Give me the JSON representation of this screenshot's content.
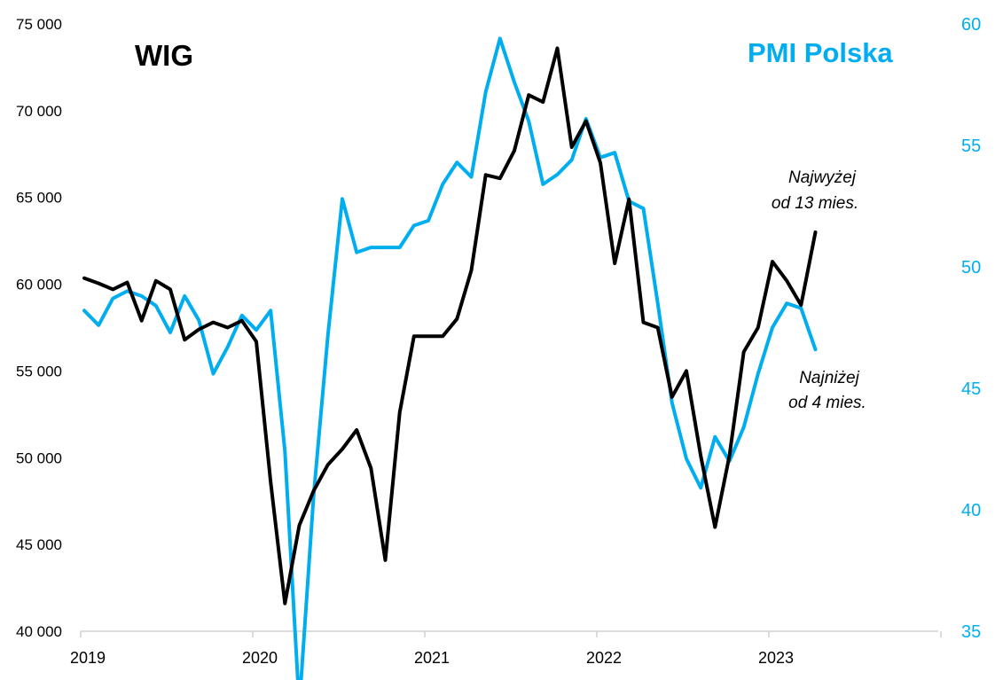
{
  "chart_data": {
    "type": "line",
    "title": "",
    "x": [
      "2019-01",
      "2019-02",
      "2019-03",
      "2019-04",
      "2019-05",
      "2019-06",
      "2019-07",
      "2019-08",
      "2019-09",
      "2019-10",
      "2019-11",
      "2019-12",
      "2020-01",
      "2020-02",
      "2020-03",
      "2020-04",
      "2020-05",
      "2020-06",
      "2020-07",
      "2020-08",
      "2020-09",
      "2020-10",
      "2020-11",
      "2020-12",
      "2021-01",
      "2021-02",
      "2021-03",
      "2021-04",
      "2021-05",
      "2021-06",
      "2021-07",
      "2021-08",
      "2021-09",
      "2021-10",
      "2021-11",
      "2021-12",
      "2022-01",
      "2022-02",
      "2022-03",
      "2022-04",
      "2022-05",
      "2022-06",
      "2022-07",
      "2022-08",
      "2022-09",
      "2022-10",
      "2022-11",
      "2022-12",
      "2023-01",
      "2023-02",
      "2023-03",
      "2023-04"
    ],
    "series": [
      {
        "name": "WIG",
        "axis": "left",
        "color": "#000000",
        "values": [
          60350,
          60050,
          59700,
          60100,
          57900,
          60200,
          59700,
          56800,
          57400,
          57800,
          57500,
          57900,
          56700,
          48600,
          41600,
          46100,
          48100,
          49600,
          50500,
          51600,
          49400,
          44100,
          52600,
          57000,
          57000,
          57000,
          58000,
          60800,
          66300,
          66100,
          67700,
          70900,
          70500,
          73600,
          67900,
          69400,
          67000,
          61200,
          64900,
          57800,
          57500,
          53500,
          55000,
          50100,
          46000,
          50100,
          56100,
          57500,
          61300,
          60200,
          58800,
          63000
        ]
      },
      {
        "name": "PMI Polska",
        "axis": "right",
        "color": "#00aeef",
        "values": [
          48.2,
          47.6,
          48.7,
          49.0,
          48.8,
          48.4,
          47.3,
          48.8,
          47.8,
          45.6,
          46.7,
          48.0,
          47.4,
          48.2,
          42.4,
          31.9,
          40.6,
          47.2,
          52.8,
          50.6,
          50.8,
          50.8,
          50.8,
          51.7,
          51.9,
          53.4,
          54.3,
          53.7,
          57.2,
          59.4,
          57.6,
          56.0,
          53.4,
          53.8,
          54.4,
          56.1,
          54.5,
          54.7,
          52.7,
          52.4,
          48.5,
          44.4,
          42.1,
          40.9,
          43.0,
          42.0,
          43.4,
          45.6,
          47.5,
          48.5,
          48.3,
          46.6
        ]
      }
    ],
    "y_left": {
      "range": [
        40000,
        75000
      ],
      "ticks": [
        40000,
        45000,
        50000,
        55000,
        60000,
        65000,
        70000,
        75000
      ],
      "tick_labels": [
        "40 000",
        "45 000",
        "50 000",
        "55 000",
        "60 000",
        "65 000",
        "70 000",
        "75 000"
      ]
    },
    "y_right": {
      "range": [
        35,
        60
      ],
      "ticks": [
        35,
        40,
        45,
        50,
        55,
        60
      ],
      "tick_labels": [
        "35",
        "40",
        "45",
        "50",
        "55",
        "60"
      ]
    },
    "x_axis": {
      "range": [
        "2019-01",
        "2023-12"
      ],
      "year_labels": [
        "2019",
        "2020",
        "2021",
        "2022",
        "2023"
      ]
    },
    "labels": {
      "left_series": "WIG",
      "right_series": "PMI Polska"
    },
    "annotations": {
      "high_line1": "Najwyżej",
      "high_line2": "od 13 mies.",
      "low_line1": "Najniżej",
      "low_line2": "od 4 mies."
    },
    "grid": false
  },
  "colors": {
    "wig": "#000000",
    "pmi": "#00aeef",
    "axis": "#d0d0d0"
  }
}
